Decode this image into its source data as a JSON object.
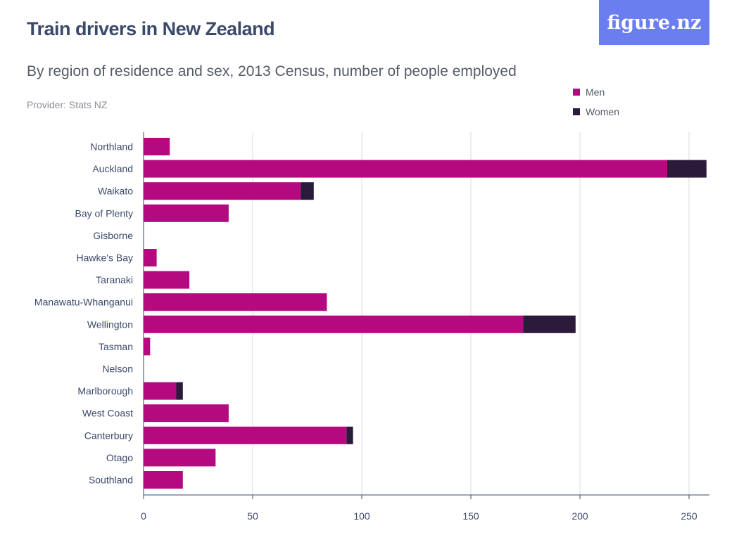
{
  "header": {
    "title": "Train drivers in New Zealand",
    "subtitle": "By region of residence and sex, 2013 Census, number of people employed",
    "provider": "Provider: Stats NZ",
    "logo_text": "figure.nz"
  },
  "colors": {
    "men": "#b5097f",
    "women": "#2b1a3a",
    "grid": "#dcdcdc",
    "logo_bg": "#6b7ef0"
  },
  "chart_data": {
    "type": "bar",
    "orientation": "horizontal",
    "stacked": true,
    "categories": [
      "Northland",
      "Auckland",
      "Waikato",
      "Bay of Plenty",
      "Gisborne",
      "Hawke's Bay",
      "Taranaki",
      "Manawatu-Whanganui",
      "Wellington",
      "Tasman",
      "Nelson",
      "Marlborough",
      "West Coast",
      "Canterbury",
      "Otago",
      "Southland"
    ],
    "series": [
      {
        "name": "Men",
        "values": [
          12,
          240,
          72,
          39,
          0,
          6,
          21,
          84,
          174,
          3,
          0,
          15,
          39,
          93,
          33,
          18
        ]
      },
      {
        "name": "Women",
        "values": [
          0,
          18,
          6,
          0,
          0,
          0,
          0,
          0,
          24,
          0,
          0,
          3,
          0,
          3,
          0,
          0
        ]
      }
    ],
    "xlim": [
      0,
      260
    ],
    "xticks": [
      0,
      50,
      100,
      150,
      200,
      250
    ],
    "grid": true,
    "legend_position": "top-right"
  }
}
